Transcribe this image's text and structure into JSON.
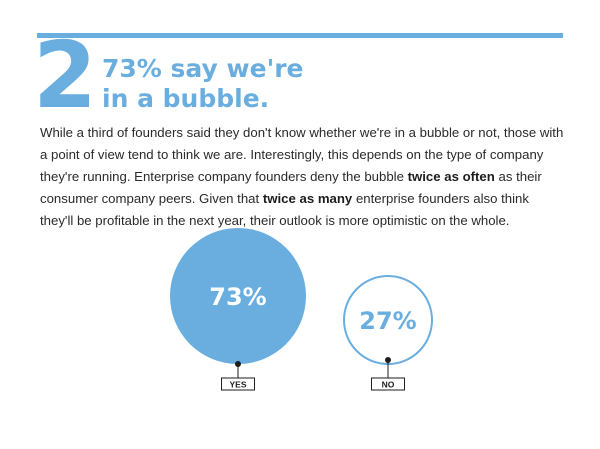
{
  "section": {
    "number": "2",
    "headline_line1": "73% say we're",
    "headline_line2": "in a bubble."
  },
  "body": {
    "p1": "While a third of founders said they don't know whether we're in a bubble or not, those with a point of view tend to think we are. Interestingly, this depends on the type of company they're running. Enterprise company founders deny the bubble ",
    "b1": "twice as often",
    "p2": " as their consumer company peers. Given that ",
    "b2": "twice as many",
    "p3": " enterprise founders also think they'll be profitable in the next year, their outlook is more optimistic on the whole."
  },
  "colors": {
    "accent": "#6aaee0",
    "text": "#2a2a2a"
  },
  "chart_data": {
    "type": "bubble",
    "categories": [
      "YES",
      "NO"
    ],
    "values": [
      73,
      27
    ],
    "value_labels": [
      "73%",
      "27%"
    ],
    "styles": [
      "filled",
      "outline"
    ]
  }
}
